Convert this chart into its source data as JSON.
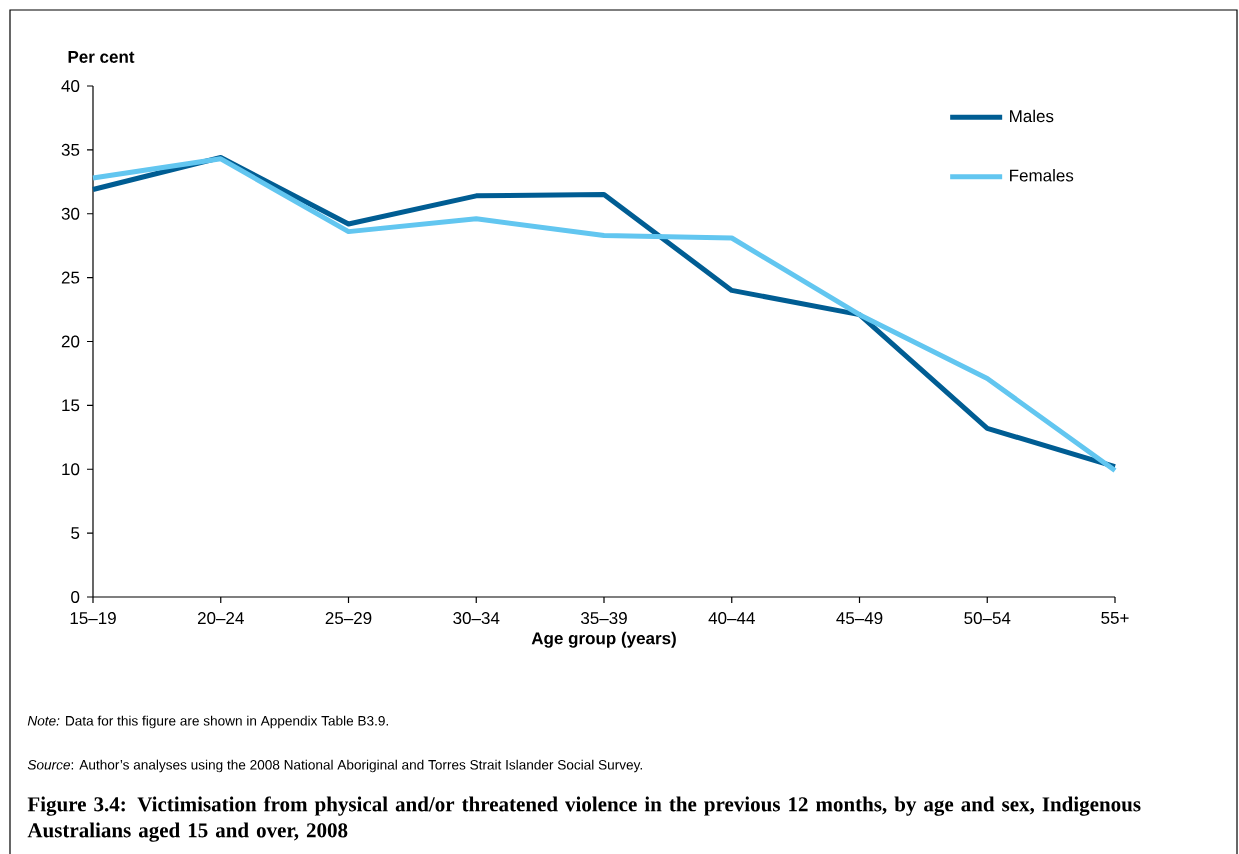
{
  "chart_data": {
    "type": "line",
    "title": "Figure 3.4: Victimisation from physical and/or threatened violence in the previous 12 months, by age and sex, Indigenous Australians aged 15 and over, 2008",
    "xlabel": "Age group (years)",
    "ylabel": "Per cent",
    "annotations": [
      "*Note:* Data for this figure are shown in Appendix Table B3.9.",
      "*Source*: Author’s analyses using the 2008 National Aboriginal and Torres Strait Islander Social Survey."
    ],
    "categories": [
      "15–19",
      "20–24",
      "25–29",
      "30–34",
      "35–39",
      "40–44",
      "45–49",
      "50–54",
      "55+"
    ],
    "series": [
      {
        "name": "Males",
        "color": "#005d93",
        "values": [
          31.9,
          34.4,
          29.2,
          31.4,
          31.5,
          24.0,
          22.1,
          13.2,
          10.2
        ]
      },
      {
        "name": "Females",
        "color": "#62c6f0",
        "values": [
          32.8,
          34.3,
          28.6,
          29.6,
          28.3,
          28.1,
          22.1,
          17.1,
          9.9
        ]
      }
    ],
    "ylim": [
      0,
      40
    ],
    "yticks": [
      0,
      5,
      10,
      15,
      20,
      25,
      30,
      35,
      40
    ],
    "legend": "top right",
    "marker": "none",
    "line_style": "solid"
  }
}
